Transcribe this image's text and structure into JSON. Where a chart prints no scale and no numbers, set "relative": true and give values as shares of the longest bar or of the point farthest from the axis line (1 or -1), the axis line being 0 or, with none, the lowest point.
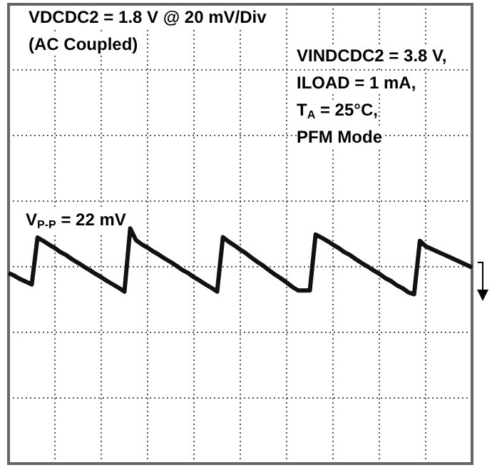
{
  "chart_data": {
    "type": "line",
    "relative": true,
    "grid": true,
    "legend": false,
    "marker": "none",
    "line_style": "solid",
    "categories": [
      null,
      null,
      null,
      null,
      null,
      null,
      null,
      null,
      null,
      null,
      null,
      null,
      null,
      null,
      null,
      null,
      null,
      null,
      null,
      null,
      null,
      null,
      null,
      null,
      null,
      null,
      null,
      null,
      null,
      null,
      null,
      null,
      null,
      null,
      null,
      null,
      null,
      null,
      null,
      null,
      null,
      null,
      null,
      null,
      null,
      null,
      null,
      null,
      null,
      null,
      null,
      null,
      null,
      null,
      null,
      null,
      null,
      null,
      null,
      null,
      null,
      null,
      null,
      null,
      null,
      null,
      null,
      null,
      null,
      null,
      null,
      null,
      null,
      null,
      null,
      null,
      null,
      null,
      null,
      null,
      null
    ],
    "series": [
      {
        "color": "#111111",
        "values": [
          -0.18,
          -0.25,
          -0.34,
          -0.41,
          -0.48,
          0.76,
          0.67,
          0.57,
          0.48,
          0.37,
          0.29,
          0.18,
          0.09,
          -0.01,
          -0.1,
          -0.2,
          -0.29,
          -0.39,
          -0.48,
          -0.57,
          -0.67,
          1,
          0.69,
          0.58,
          0.49,
          0.39,
          0.3,
          0.2,
          0.11,
          0.01,
          -0.1,
          -0.18,
          -0.29,
          -0.38,
          -0.48,
          -0.57,
          -0.67,
          0.77,
          0.65,
          0.55,
          0.44,
          0.34,
          0.22,
          0.11,
          0.01,
          -0.11,
          -0.22,
          -0.32,
          -0.43,
          -0.55,
          -0.64,
          -0.64,
          -0.64,
          0.84,
          0.76,
          0.67,
          0.57,
          0.48,
          0.37,
          0.29,
          0.18,
          0.08,
          -0.01,
          -0.11,
          -0.2,
          -0.31,
          -0.39,
          -0.5,
          -0.58,
          -0.69,
          -0.74,
          0.67,
          0.53,
          0.46,
          0.39,
          0.32,
          0.25,
          0.18,
          0.11,
          0.04,
          -0.03
        ]
      }
    ],
    "annotations": [
      "VDCDC2 = 1.8 V @ 20 mV/Div",
      "(AC Coupled)",
      "VINDCDC2 = 3.8 V,",
      "ILOAD = 1 mA,",
      "T$_{A}$ = 25°C,",
      "PFM Mode",
      "V$_{P-P}$ = 22 mV"
    ]
  }
}
